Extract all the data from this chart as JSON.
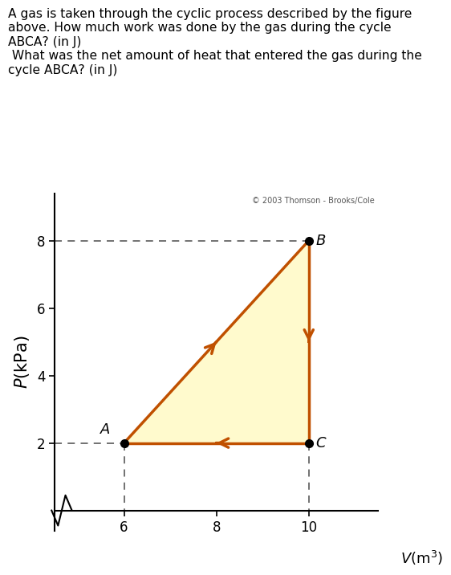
{
  "title_text": "A gas is taken through the cyclic process described by the figure\nabove. How much work was done by the gas during the cycle\nABCA? (in J)\n What was the net amount of heat that entered the gas during the\ncycle ABCA? (in J)",
  "copyright_text": "© 2003 Thomson - Brooks/Cole",
  "ylabel": "P(kPa)",
  "xlabel": "V(m³)",
  "points": {
    "A": [
      6,
      2
    ],
    "B": [
      10,
      8
    ],
    "C": [
      10,
      2
    ]
  },
  "xlim_left": 4.5,
  "xlim_right": 11.5,
  "ylim_bottom": -0.6,
  "ylim_top": 9.4,
  "xticks": [
    6,
    8,
    10
  ],
  "yticks": [
    2,
    4,
    6,
    8
  ],
  "fill_color": "#fffacd",
  "line_color": "#c05000",
  "dashed_color": "#666666",
  "dot_color": "#000000",
  "arrow_mutation_scale": 18,
  "line_width": 2.5
}
